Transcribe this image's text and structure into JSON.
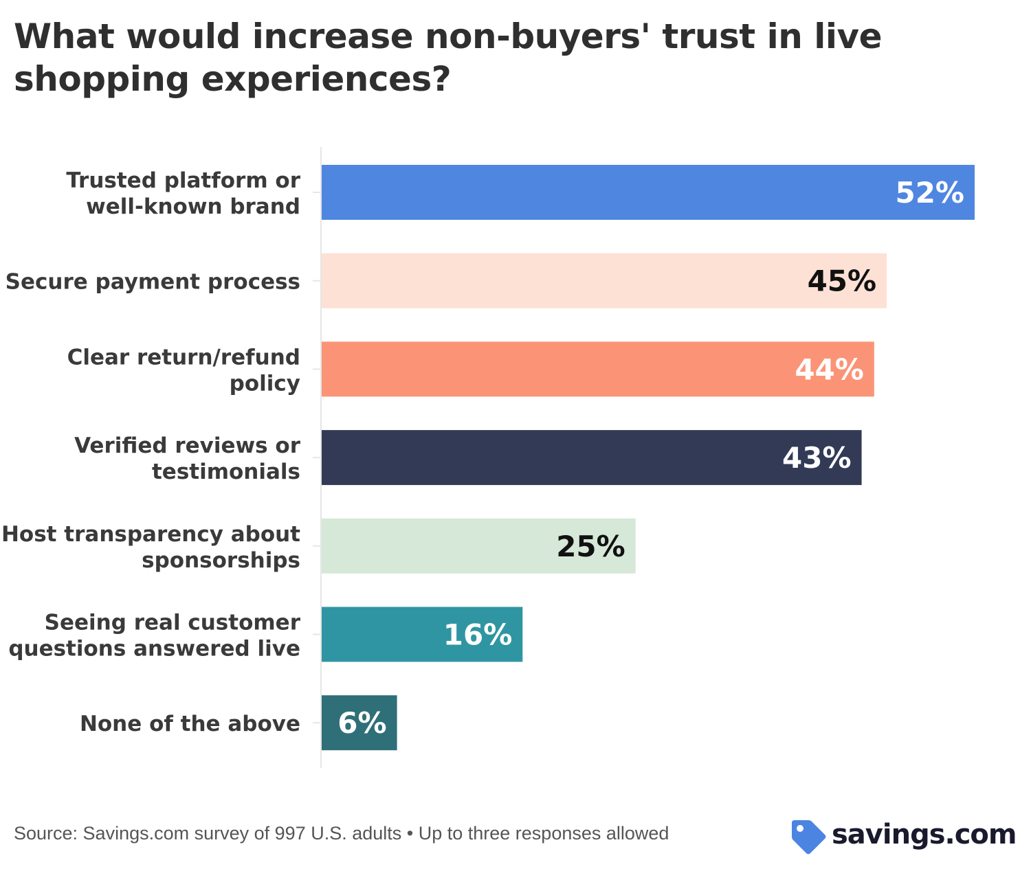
{
  "title": "What would increase non-buyers' trust in live shopping experiences?",
  "source": "Source: Savings.com survey of 997 U.S. adults • Up to three responses allowed",
  "logo": {
    "text": "savings.com",
    "icon": "price-tag-icon",
    "icon_color": "#4c84e2"
  },
  "chart_data": {
    "type": "bar",
    "orientation": "horizontal",
    "categories": [
      [
        "Trusted platform or",
        "well-known brand"
      ],
      [
        "Secure payment process"
      ],
      [
        "Clear return/refund",
        "policy"
      ],
      [
        "Verified reviews or",
        "testimonials"
      ],
      [
        "Host transparency about",
        "sponsorships"
      ],
      [
        "Seeing real customer",
        "questions answered live"
      ],
      [
        "None of the above"
      ]
    ],
    "values": [
      52,
      45,
      44,
      43,
      25,
      16,
      6
    ],
    "labels": [
      "52%",
      "45%",
      "44%",
      "43%",
      "25%",
      "16%",
      "6%"
    ],
    "colors": [
      "#4f86e0",
      "#fde1d4",
      "#fb9477",
      "#323a56",
      "#d6e8d8",
      "#3095a2",
      "#2f6f78"
    ],
    "label_colors": [
      "#ffffff",
      "#111111",
      "#ffffff",
      "#ffffff",
      "#111111",
      "#ffffff",
      "#ffffff"
    ],
    "xlim": [
      0,
      52
    ],
    "grid": false,
    "legend": "none"
  }
}
